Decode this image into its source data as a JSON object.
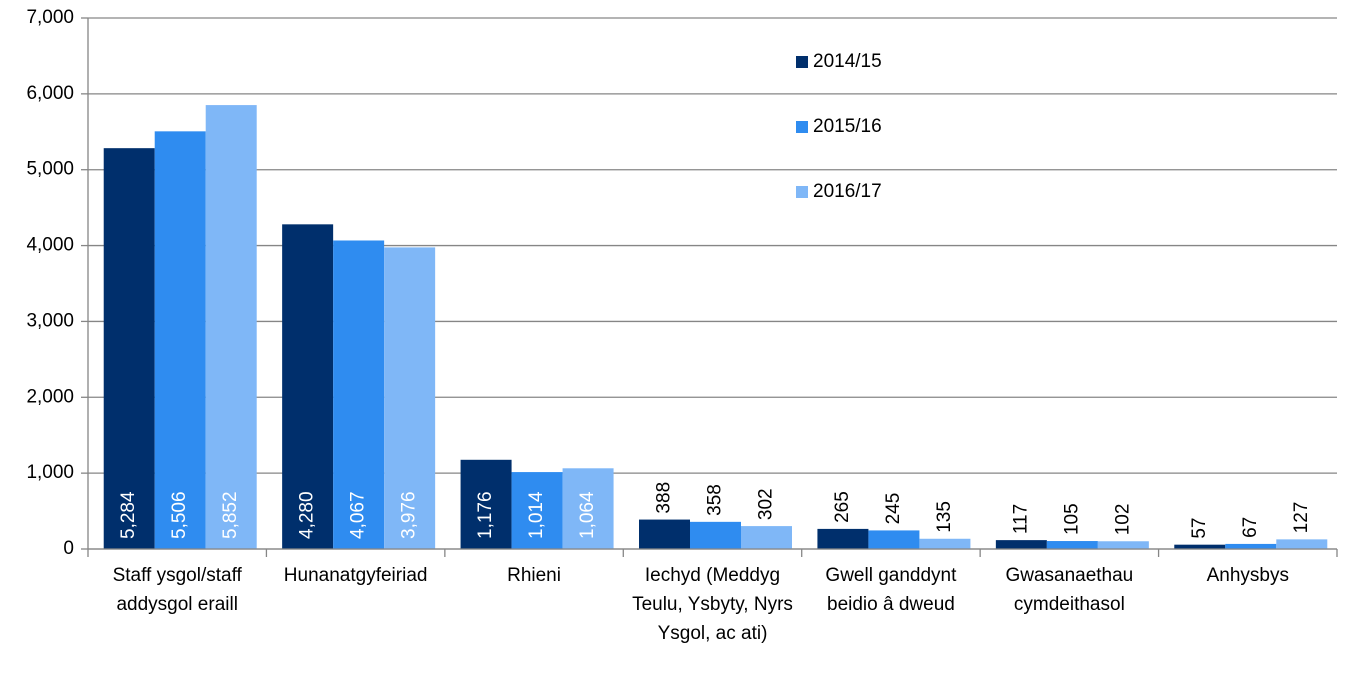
{
  "chart_data": {
    "type": "bar",
    "categories": [
      "Staff ysgol/staff addysgol eraill",
      "Hunanatgyfeiriad",
      "Rhieni",
      "Iechyd (Meddyg Teulu, Ysbyty, Nyrs Ysgol, ac ati)",
      "Gwell ganddynt beidio â dweud",
      "Gwasanaethau cymdeithasol",
      "Anhysbys"
    ],
    "series": [
      {
        "name": "2014/15",
        "color": "#002f6c",
        "values": [
          5284,
          4280,
          1176,
          388,
          265,
          117,
          57
        ],
        "value_labels": [
          "5,284",
          "4,280",
          "1,176",
          "388",
          "265",
          "117",
          "57"
        ]
      },
      {
        "name": "2015/16",
        "color": "#2f8cf0",
        "values": [
          5506,
          4067,
          1014,
          358,
          245,
          105,
          67
        ],
        "value_labels": [
          "5,506",
          "4,067",
          "1,014",
          "358",
          "245",
          "105",
          "67"
        ]
      },
      {
        "name": "2016/17",
        "color": "#7fb7f7",
        "values": [
          5852,
          3976,
          1064,
          302,
          135,
          102,
          127
        ],
        "value_labels": [
          "5,852",
          "3,976",
          "1,064",
          "302",
          "135",
          "102",
          "127"
        ]
      }
    ],
    "ylim": [
      0,
      7000
    ],
    "yticks": [
      0,
      {
        "value": 1000,
        "label": "1,000"
      },
      {
        "value": 2000,
        "label": "2,000"
      },
      {
        "value": 3000,
        "label": "3,000"
      },
      {
        "value": 4000,
        "label": "4,000"
      },
      {
        "value": 5000,
        "label": "5,000"
      },
      {
        "value": 6000,
        "label": "6,000"
      },
      {
        "value": 7000,
        "label": "7,000"
      }
    ],
    "grid": true,
    "legend": "top-right"
  }
}
